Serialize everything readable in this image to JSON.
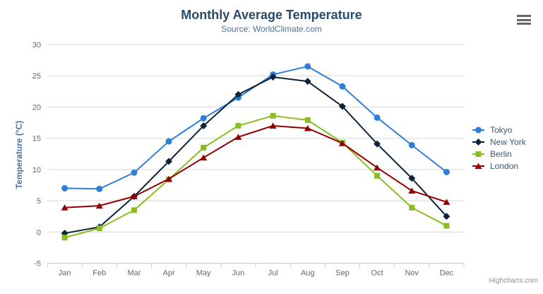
{
  "chart_data": {
    "type": "line",
    "title": "Monthly Average Temperature",
    "subtitle": "Source: WorldClimate.com",
    "xlabel": "",
    "ylabel": "Temperature (°C)",
    "categories": [
      "Jan",
      "Feb",
      "Mar",
      "Apr",
      "May",
      "Jun",
      "Jul",
      "Aug",
      "Sep",
      "Oct",
      "Nov",
      "Dec"
    ],
    "ylim": [
      -5,
      30
    ],
    "yticks": [
      -5,
      0,
      5,
      10,
      15,
      20,
      25,
      30
    ],
    "grid": true,
    "legend_position": "right",
    "series": [
      {
        "name": "Tokyo",
        "color": "#2f7ed8",
        "marker": "circle",
        "values": [
          7.0,
          6.9,
          9.5,
          14.5,
          18.2,
          21.5,
          25.2,
          26.5,
          23.3,
          18.3,
          13.9,
          9.6
        ]
      },
      {
        "name": "New York",
        "color": "#0d233a",
        "marker": "diamond",
        "values": [
          -0.2,
          0.8,
          5.7,
          11.3,
          17.0,
          22.0,
          24.8,
          24.1,
          20.1,
          14.1,
          8.6,
          2.5
        ]
      },
      {
        "name": "Berlin",
        "color": "#8bbc21",
        "marker": "square",
        "values": [
          -0.9,
          0.6,
          3.5,
          8.4,
          13.5,
          17.0,
          18.6,
          17.9,
          14.3,
          9.0,
          3.9,
          1.0
        ]
      },
      {
        "name": "London",
        "color": "#910000",
        "marker": "triangle",
        "values": [
          3.9,
          4.2,
          5.7,
          8.5,
          11.9,
          15.2,
          17.0,
          16.6,
          14.2,
          10.3,
          6.6,
          4.8
        ]
      }
    ]
  },
  "credit": {
    "label": "Highcharts.com"
  },
  "theme": {
    "background": "#ffffff",
    "title_color": "#274b6d",
    "subtitle_color": "#4d759e",
    "y_axis_title_color": "#4572A7",
    "axis_label_color": "#666666",
    "grid_line_color": "#D8D8D8",
    "axis_line_color": "#C0D0E0",
    "legend_text_color": "#3E576F",
    "credit_color": "#909090",
    "menu_icon_color": "#666666"
  }
}
